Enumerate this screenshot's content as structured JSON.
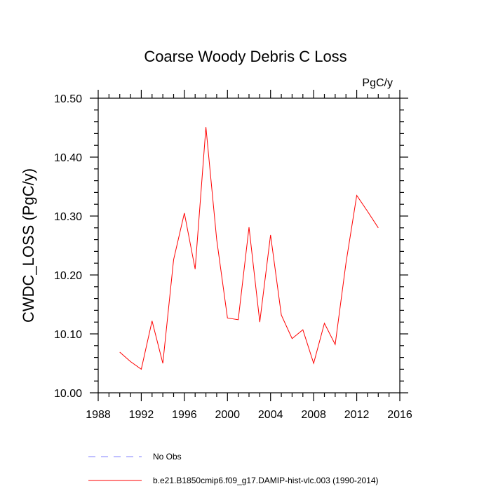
{
  "chart_data": {
    "type": "line",
    "title": "Coarse Woody Debris C Loss",
    "units": "PgC/y",
    "xlabel": "",
    "ylabel": "CWDC_LOSS  (PgC/y)",
    "xlim": [
      1988,
      2016
    ],
    "ylim": [
      10.0,
      10.5
    ],
    "x_ticks": [
      1988,
      1992,
      1996,
      2000,
      2004,
      2008,
      2012,
      2016
    ],
    "x_tick_labels": [
      "1988",
      "1992",
      "1996",
      "2000",
      "2004",
      "2008",
      "2012",
      "2016"
    ],
    "y_ticks": [
      10.0,
      10.1,
      10.2,
      10.3,
      10.4,
      10.5
    ],
    "y_tick_labels": [
      "10.00",
      "10.10",
      "10.20",
      "10.30",
      "10.40",
      "10.50"
    ],
    "grid": false,
    "legend_position": "bottom",
    "series": [
      {
        "name": "No Obs",
        "color": "#8080ff",
        "style": "dashed",
        "x": [],
        "values": []
      },
      {
        "name": "b.e21.B1850cmip6.f09_g17.DAMIP-hist-vlc.003 (1990-2014)",
        "color": "#ff0000",
        "style": "solid",
        "x": [
          1990,
          1991,
          1992,
          1993,
          1994,
          1995,
          1996,
          1997,
          1998,
          1999,
          2000,
          2001,
          2002,
          2003,
          2004,
          2005,
          2006,
          2007,
          2008,
          2009,
          2010,
          2011,
          2012,
          2013,
          2014
        ],
        "values": [
          10.069,
          10.053,
          10.04,
          10.122,
          10.05,
          10.226,
          10.305,
          10.21,
          10.451,
          10.26,
          10.127,
          10.124,
          10.281,
          10.12,
          10.268,
          10.132,
          10.092,
          10.107,
          10.05,
          10.118,
          10.082,
          10.22,
          10.335,
          10.308,
          10.28
        ]
      }
    ]
  }
}
